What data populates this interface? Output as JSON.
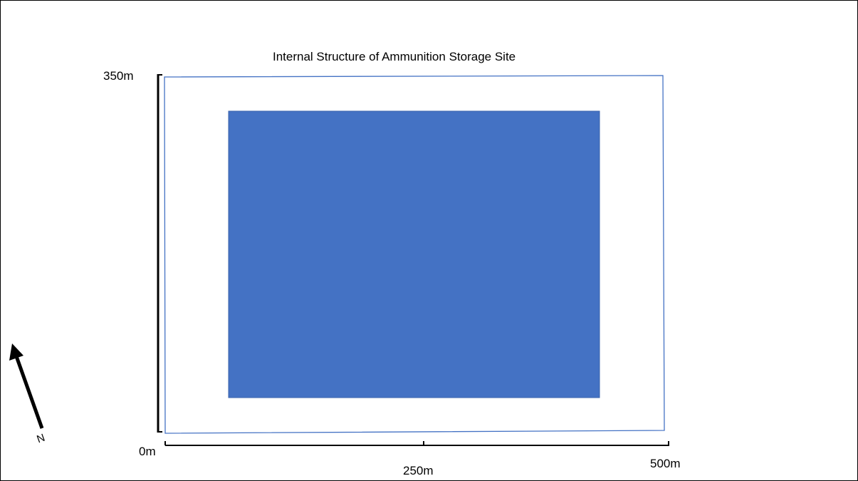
{
  "title": "Internal Structure of Ammunition Storage Site",
  "axis": {
    "y_top_label": "350m",
    "origin_label": "0m",
    "x_mid_label": "250m",
    "x_end_label": "500m"
  },
  "compass": {
    "label": "N"
  },
  "colors": {
    "site_outline": "#4472c4",
    "storage_block_fill": "#4472c4",
    "axis_lines": "#000000",
    "compass_arrow": "#000000"
  }
}
